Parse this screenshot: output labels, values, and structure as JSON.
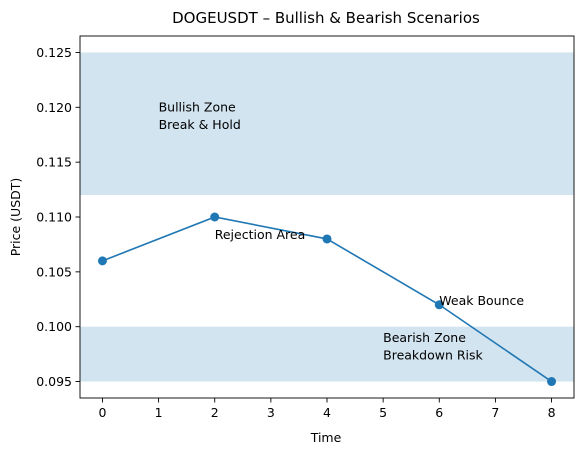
{
  "chart_data": {
    "type": "line",
    "title": "DOGEUSDT – Bullish & Bearish Scenarios",
    "xlabel": "Time",
    "ylabel": "Price (USDT)",
    "xlim": [
      -0.4,
      8.4
    ],
    "ylim": [
      0.0935,
      0.1265
    ],
    "xticks": [
      0,
      1,
      2,
      3,
      4,
      5,
      6,
      7,
      8
    ],
    "xtick_labels": [
      "0",
      "1",
      "2",
      "3",
      "4",
      "5",
      "6",
      "7",
      "8"
    ],
    "yticks": [
      0.095,
      0.1,
      0.105,
      0.11,
      0.115,
      0.12,
      0.125
    ],
    "ytick_labels": [
      "0.095",
      "0.100",
      "0.105",
      "0.110",
      "0.115",
      "0.120",
      "0.125"
    ],
    "grid": false,
    "series": [
      {
        "x": [
          0,
          2,
          4,
          6,
          8
        ],
        "y": [
          0.106,
          0.11,
          0.108,
          0.102,
          0.095
        ],
        "color": "#1f77b4",
        "marker": "circle"
      }
    ],
    "bands": [
      {
        "y0": 0.112,
        "y1": 0.125,
        "color": "#1f77b4",
        "alpha": 0.2
      },
      {
        "y0": 0.095,
        "y1": 0.1,
        "color": "#1f77b4",
        "alpha": 0.2
      }
    ],
    "annotations": [
      {
        "x": 1,
        "y": 0.118,
        "lines": [
          "Bullish Zone",
          "Break & Hold"
        ]
      },
      {
        "x": 2,
        "y": 0.108,
        "lines": [
          "Rejection Area"
        ]
      },
      {
        "x": 6,
        "y": 0.102,
        "lines": [
          "Weak Bounce"
        ]
      },
      {
        "x": 5,
        "y": 0.097,
        "lines": [
          "Bearish Zone",
          "Breakdown Risk"
        ]
      }
    ]
  }
}
